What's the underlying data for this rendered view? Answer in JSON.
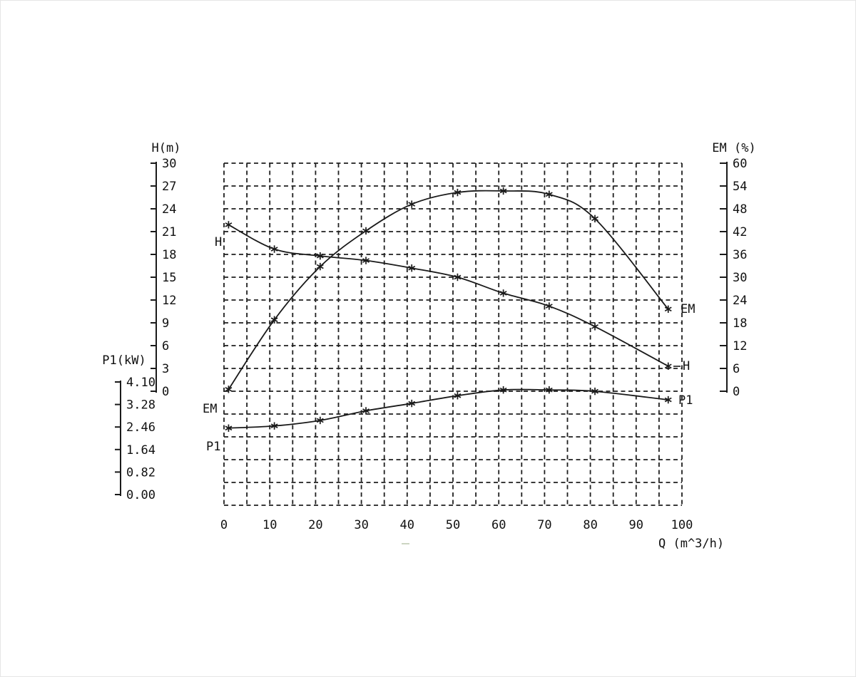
{
  "chart_data": {
    "type": "line",
    "grid": true,
    "legend_position": "inline-curve-labels",
    "x": {
      "label": "Q (m^3/h)",
      "min": 0,
      "max": 100,
      "ticks": [
        "0",
        "10",
        "20",
        "30",
        "40",
        "50",
        "60",
        "70",
        "80",
        "90",
        "100"
      ],
      "grid_step": 5
    },
    "axes": {
      "H": {
        "label": "H(m)",
        "min": 0,
        "max": 30,
        "ticks": [
          "30",
          "27",
          "24",
          "21",
          "18",
          "15",
          "12",
          "9",
          "6",
          "3",
          "0"
        ]
      },
      "P1": {
        "label": "P1(kW)",
        "min": 0,
        "max": 4.1,
        "ticks": [
          "4.10",
          "3.28",
          "2.46",
          "1.64",
          "0.82",
          "0.00"
        ]
      },
      "EM": {
        "label": "EM (%)",
        "min": 0,
        "max": 60,
        "ticks": [
          "60",
          "54",
          "48",
          "42",
          "36",
          "30",
          "24",
          "18",
          "12",
          "6",
          "0"
        ]
      }
    },
    "q_values": [
      1,
      11,
      21,
      31,
      41,
      51,
      61,
      71,
      81,
      97
    ],
    "series": [
      {
        "name": "H",
        "axis": "H",
        "unit": "m",
        "values": [
          21.9,
          18.7,
          17.8,
          17.2,
          16.2,
          15.0,
          12.9,
          11.2,
          8.5,
          3.3
        ]
      },
      {
        "name": "EM",
        "axis": "EM",
        "unit": "%",
        "values": [
          0.5,
          18.8,
          32.8,
          42.2,
          49.2,
          52.3,
          52.7,
          51.8,
          45.4,
          21.6
        ]
      },
      {
        "name": "P1",
        "axis": "P1",
        "unit": "kW",
        "values": [
          2.42,
          2.5,
          2.7,
          3.05,
          3.32,
          3.6,
          3.81,
          3.81,
          3.76,
          3.45
        ]
      }
    ],
    "curve_labels": {
      "left": {
        "H": "H",
        "EM": "EM",
        "P1": "P1"
      },
      "right": {
        "H": "H",
        "EM": "EM",
        "P1": "P1"
      }
    },
    "marker": "*",
    "colors": {
      "line": "#1a1a1a",
      "grid": "#1f1f1f",
      "text": "#111111",
      "background": "#ffffff",
      "artifact": "#ccd5c2"
    }
  }
}
